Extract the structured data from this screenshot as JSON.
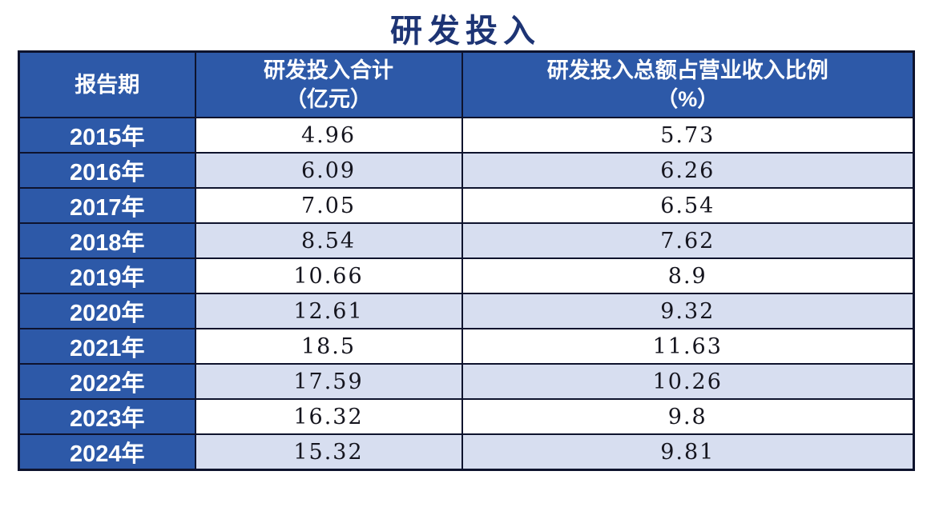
{
  "title": "研发投入",
  "table": {
    "headers": [
      "报告期",
      "研发投入合计\n（亿元）",
      "研发投入总额占营业收入比例\n（%）"
    ]
  },
  "chart_data": {
    "type": "table",
    "title": "研发投入",
    "columns": [
      "报告期",
      "研发投入合计（亿元）",
      "研发投入总额占营业收入比例（%）"
    ],
    "rows": [
      [
        "2015年",
        4.96,
        5.73
      ],
      [
        "2016年",
        6.09,
        6.26
      ],
      [
        "2017年",
        7.05,
        6.54
      ],
      [
        "2018年",
        8.54,
        7.62
      ],
      [
        "2019年",
        10.66,
        8.9
      ],
      [
        "2020年",
        12.61,
        9.32
      ],
      [
        "2021年",
        18.5,
        11.63
      ],
      [
        "2022年",
        17.59,
        10.26
      ],
      [
        "2023年",
        16.32,
        9.8
      ],
      [
        "2024年",
        15.32,
        9.81
      ]
    ],
    "layout": {
      "header_background": "#2d59a8",
      "year_column_background": "#2d59a8",
      "alt_row_background": "#d7def0",
      "border_color": "#0e132d",
      "title_color": "#1d3474",
      "grid": true
    }
  },
  "colors": {
    "header_blue": "#2d59a8",
    "row_alt_blue": "#d7def0",
    "border_navy": "#0e132d",
    "title_blue": "#1d3474",
    "value_text": "#15151e"
  }
}
